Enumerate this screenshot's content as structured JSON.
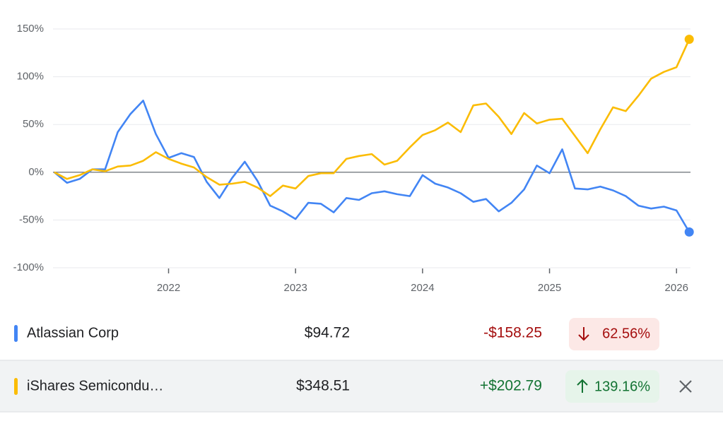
{
  "chart_data": {
    "type": "line",
    "x": [
      2021.1,
      2021.2,
      2021.3,
      2021.4,
      2021.5,
      2021.6,
      2021.7,
      2021.8,
      2021.9,
      2022.0,
      2022.1,
      2022.2,
      2022.3,
      2022.4,
      2022.5,
      2022.6,
      2022.7,
      2022.8,
      2022.9,
      2023.0,
      2023.1,
      2023.2,
      2023.3,
      2023.4,
      2023.5,
      2023.6,
      2023.7,
      2023.8,
      2023.9,
      2024.0,
      2024.1,
      2024.2,
      2024.3,
      2024.4,
      2024.5,
      2024.6,
      2024.7,
      2024.8,
      2024.9,
      2025.0,
      2025.1,
      2025.2,
      2025.3,
      2025.4,
      2025.5,
      2025.6,
      2025.7,
      2025.8,
      2025.9,
      2026.0,
      2026.1
    ],
    "series": [
      {
        "name": "Atlassian Corp",
        "color": "#4285f4",
        "values": [
          0,
          -11,
          -7,
          3,
          3,
          42,
          61,
          75,
          40,
          15,
          20,
          16,
          -10,
          -27,
          -6,
          11,
          -9,
          -35,
          -41,
          -49,
          -32,
          -33,
          -42,
          -27,
          -29,
          -22,
          -20,
          -23,
          -25,
          -3,
          -12,
          -16,
          -22,
          -31,
          -28,
          -41,
          -32,
          -18,
          7,
          -1,
          24,
          -17,
          -18,
          -15,
          -19,
          -25,
          -35,
          -38,
          -36,
          -40,
          -62.56
        ]
      },
      {
        "name": "iShares Semicondu…",
        "color": "#fbbc04",
        "values": [
          0,
          -7,
          -3,
          3,
          1,
          6,
          7,
          12,
          21,
          14,
          9,
          5,
          -5,
          -13,
          -12,
          -10,
          -16,
          -25,
          -14,
          -17,
          -4,
          -1,
          -1,
          14,
          17,
          19,
          8,
          12,
          26,
          39,
          44,
          52,
          42,
          70,
          72,
          58,
          40,
          62,
          51,
          55,
          56,
          38,
          20,
          45,
          68,
          64,
          80,
          98,
          105,
          110,
          139.16
        ]
      }
    ],
    "xlim": [
      2021.09,
      2026.11
    ],
    "xticks": [
      2022,
      2023,
      2024,
      2025,
      2026
    ],
    "ylim": [
      -100,
      150
    ],
    "yticks": [
      {
        "value": -100,
        "label": "-100%"
      },
      {
        "value": -50,
        "label": "-50%"
      },
      {
        "value": 0,
        "label": "0%"
      },
      {
        "value": 50,
        "label": "50%"
      },
      {
        "value": 100,
        "label": "100%"
      },
      {
        "value": 150,
        "label": "150%"
      }
    ],
    "grid": true
  },
  "table": {
    "rows": [
      {
        "price": "$94.72",
        "change": "-$158.25",
        "percent": "62.56%"
      },
      {
        "price": "$348.51",
        "change": "+$202.79",
        "percent": "139.16%"
      }
    ]
  }
}
